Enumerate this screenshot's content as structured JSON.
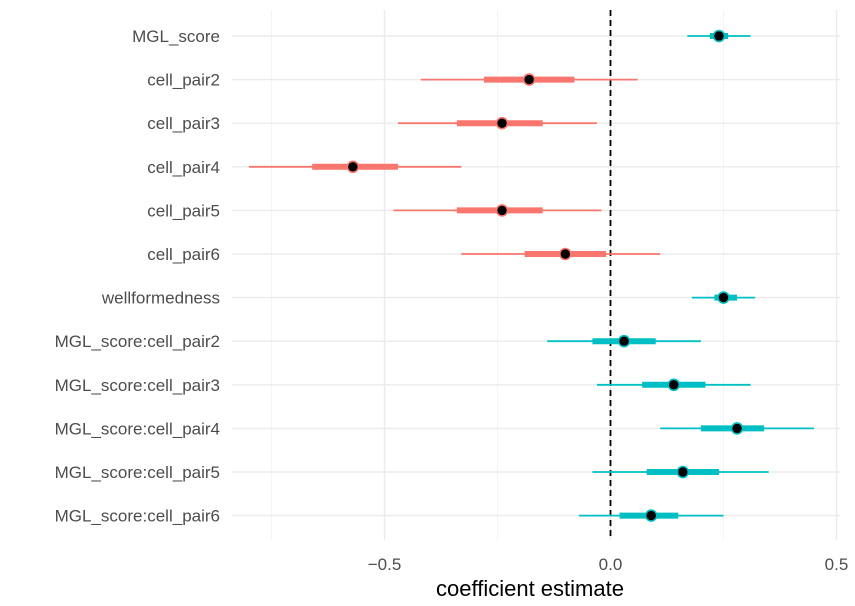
{
  "chart_data": {
    "type": "forest",
    "xlabel": "coefficient estimate",
    "ylabel": "",
    "title": "",
    "xlim": [
      -0.8,
      0.52
    ],
    "x_ticks": [
      -0.5,
      0.0,
      0.5
    ],
    "x_tick_labels": [
      "−0.5",
      "0.0",
      "0.5"
    ],
    "reference_line": 0,
    "grid": true,
    "colors": {
      "negative": "#F8766D",
      "positive": "#00BFC4",
      "point": "#000000",
      "grid_major": "#EBEBEB",
      "grid_minor": "#F4F4F4",
      "reference": "#000000",
      "text": "#4D4D4D"
    },
    "rows": [
      {
        "term": "MGL_score",
        "estimate": 0.24,
        "inner": [
          0.22,
          0.26
        ],
        "outer": [
          0.17,
          0.31
        ],
        "group": "positive"
      },
      {
        "term": "cell_pair2",
        "estimate": -0.18,
        "inner": [
          -0.28,
          -0.08
        ],
        "outer": [
          -0.42,
          0.06
        ],
        "group": "negative"
      },
      {
        "term": "cell_pair3",
        "estimate": -0.24,
        "inner": [
          -0.34,
          -0.15
        ],
        "outer": [
          -0.47,
          -0.03
        ],
        "group": "negative"
      },
      {
        "term": "cell_pair4",
        "estimate": -0.57,
        "inner": [
          -0.66,
          -0.47
        ],
        "outer": [
          -0.8,
          -0.33
        ],
        "group": "negative"
      },
      {
        "term": "cell_pair5",
        "estimate": -0.24,
        "inner": [
          -0.34,
          -0.15
        ],
        "outer": [
          -0.48,
          -0.02
        ],
        "group": "negative"
      },
      {
        "term": "cell_pair6",
        "estimate": -0.1,
        "inner": [
          -0.19,
          -0.01
        ],
        "outer": [
          -0.33,
          0.11
        ],
        "group": "negative"
      },
      {
        "term": "wellformedness",
        "estimate": 0.25,
        "inner": [
          0.23,
          0.28
        ],
        "outer": [
          0.18,
          0.32
        ],
        "group": "positive"
      },
      {
        "term": "MGL_score:cell_pair2",
        "estimate": 0.03,
        "inner": [
          -0.04,
          0.1
        ],
        "outer": [
          -0.14,
          0.2
        ],
        "group": "positive"
      },
      {
        "term": "MGL_score:cell_pair3",
        "estimate": 0.14,
        "inner": [
          0.07,
          0.21
        ],
        "outer": [
          -0.03,
          0.31
        ],
        "group": "positive"
      },
      {
        "term": "MGL_score:cell_pair4",
        "estimate": 0.28,
        "inner": [
          0.2,
          0.34
        ],
        "outer": [
          0.11,
          0.45
        ],
        "group": "positive"
      },
      {
        "term": "MGL_score:cell_pair5",
        "estimate": 0.16,
        "inner": [
          0.08,
          0.24
        ],
        "outer": [
          -0.04,
          0.35
        ],
        "group": "positive"
      },
      {
        "term": "MGL_score:cell_pair6",
        "estimate": 0.09,
        "inner": [
          0.02,
          0.15
        ],
        "outer": [
          -0.07,
          0.25
        ],
        "group": "positive"
      }
    ]
  }
}
